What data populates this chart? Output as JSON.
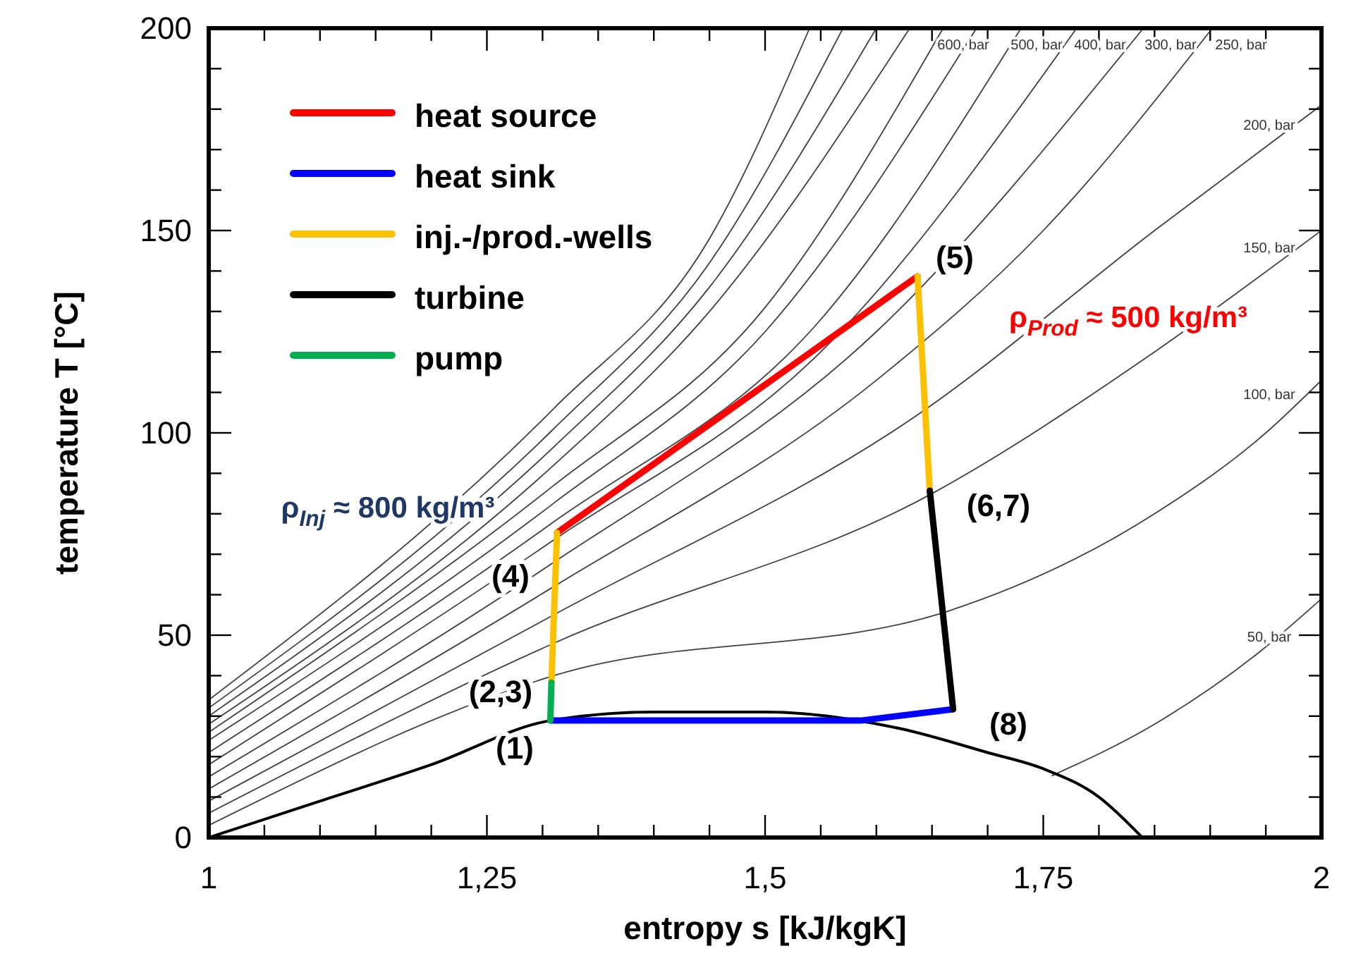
{
  "chart_data": {
    "type": "line",
    "xlabel": "entropy s [kJ/kgK]",
    "ylabel": "temperature T [°C]",
    "xlim": [
      1,
      2
    ],
    "ylim": [
      0,
      200
    ],
    "xticks": [
      1,
      {
        "value": 1.05,
        "label": null
      },
      {
        "value": 1.1,
        "label": null
      },
      {
        "value": 1.15,
        "label": null
      },
      {
        "value": 1.2,
        "label": null
      },
      {
        "value": 1.25,
        "label": "1,25"
      },
      {
        "value": 1.3,
        "label": null
      },
      {
        "value": 1.35,
        "label": null
      },
      {
        "value": 1.4,
        "label": null
      },
      {
        "value": 1.45,
        "label": null
      },
      {
        "value": 1.5,
        "label": "1,5"
      },
      {
        "value": 1.55,
        "label": null
      },
      {
        "value": 1.6,
        "label": null
      },
      {
        "value": 1.65,
        "label": null
      },
      {
        "value": 1.7,
        "label": null
      },
      {
        "value": 1.75,
        "label": "1,75"
      },
      {
        "value": 1.8,
        "label": null
      },
      {
        "value": 1.85,
        "label": null
      },
      {
        "value": 1.9,
        "label": null
      },
      {
        "value": 1.95,
        "label": null
      },
      2
    ],
    "yticks": [
      0,
      {
        "value": 10,
        "label": null
      },
      {
        "value": 20,
        "label": null
      },
      {
        "value": 30,
        "label": null
      },
      {
        "value": 40,
        "label": null
      },
      50,
      {
        "value": 60,
        "label": null
      },
      {
        "value": 70,
        "label": null
      },
      {
        "value": 80,
        "label": null
      },
      {
        "value": 90,
        "label": null
      },
      100,
      {
        "value": 110,
        "label": null
      },
      {
        "value": 120,
        "label": null
      },
      {
        "value": 130,
        "label": null
      },
      {
        "value": 140,
        "label": null
      },
      150,
      {
        "value": 160,
        "label": null
      },
      {
        "value": 170,
        "label": null
      },
      {
        "value": 180,
        "label": null
      },
      {
        "value": 190,
        "label": null
      },
      200
    ],
    "grid": false,
    "legend": "top left",
    "marker": "none",
    "line_style": "solid",
    "series": [
      {
        "color": "#404040",
        "x": [
          1.758,
          1.85,
          1.945,
          2.0
        ],
        "values": [
          15.3,
          28,
          46,
          59
        ]
      },
      {
        "color": "#404040",
        "x": [
          1,
          1.31,
          1.665,
          1.85,
          1.95,
          2.0
        ],
        "values": [
          3,
          40,
          56,
          80,
          100,
          113
        ]
      },
      {
        "color": "#404040",
        "x": [
          1,
          1.31,
          1.65,
          1.85,
          2.0
        ],
        "values": [
          6,
          48,
          85,
          120,
          150
        ]
      },
      {
        "color": "#404040",
        "x": [
          1,
          1.31,
          1.64,
          1.85,
          2.0
        ],
        "values": [
          9,
          55,
          105,
          150,
          181
        ]
      },
      {
        "color": "#404040",
        "x": [
          1,
          1.31,
          1.6,
          1.75,
          1.902
        ],
        "values": [
          12,
          62,
          113,
          150,
          200
        ]
      },
      {
        "color": "#404040",
        "x": [
          1,
          1.31,
          1.6,
          1.84
        ],
        "values": [
          15,
          68,
          125,
          200
        ]
      },
      {
        "color": "#404040",
        "x": [
          1,
          1.31,
          1.55,
          1.78
        ],
        "values": [
          18,
          73.5,
          120,
          200
        ]
      },
      {
        "color": "#404040",
        "x": [
          1,
          1.31,
          1.55,
          1.73
        ],
        "values": [
          21,
          78,
          128,
          200
        ]
      },
      {
        "color": "#404040",
        "x": [
          1,
          1.31,
          1.5,
          1.69
        ],
        "values": [
          24,
          82.6,
          125,
          200
        ]
      },
      {
        "color": "#404040",
        "x": [
          1,
          1.31,
          1.5,
          1.66
        ],
        "values": [
          26,
          87,
          131,
          200
        ]
      },
      {
        "color": "#404040",
        "x": [
          1,
          1.31,
          1.45,
          1.63
        ],
        "values": [
          28,
          92,
          130,
          200
        ]
      },
      {
        "color": "#404040",
        "x": [
          1,
          1.31,
          1.45,
          1.6
        ],
        "values": [
          30,
          96.5,
          136,
          200
        ]
      },
      {
        "color": "#404040",
        "x": [
          1,
          1.31,
          1.45,
          1.57
        ],
        "values": [
          32,
          101,
          142,
          200
        ]
      },
      {
        "color": "#404040",
        "x": [
          1,
          1.31,
          1.45,
          1.54
        ],
        "values": [
          34,
          106,
          148,
          200
        ]
      },
      {
        "color": "#000000",
        "x": [
          1,
          1.1,
          1.2,
          1.307,
          1.4,
          1.5,
          1.62,
          1.7,
          1.75,
          1.8,
          1.839
        ],
        "values": [
          0,
          9,
          18,
          28.9,
          31,
          31,
          27,
          21,
          17,
          10,
          0
        ]
      },
      {
        "name": "heat source",
        "color": "#ff0000",
        "x": [
          1.313,
          1.637
        ],
        "values": [
          75.3,
          138.7
        ]
      },
      {
        "name": "heat sink",
        "color": "#0000ff",
        "x": [
          1.307,
          1.586,
          1.669
        ],
        "values": [
          28.9,
          28.9,
          31.7
        ]
      },
      {
        "name": "inj.-/prod.-wells",
        "color": "#ffc000",
        "x": [
          1.308,
          1.313,
          1.5,
          1.637,
          1.648
        ],
        "values": [
          38.3,
          75.3,
          null,
          138.7,
          85.7
        ]
      },
      {
        "name": "turbine",
        "color": "#000000",
        "x": [
          1.648,
          1.669
        ],
        "values": [
          85.7,
          31.7
        ]
      },
      {
        "name": "pump",
        "color": "#00b050",
        "x": [
          1.307,
          1.308
        ],
        "values": [
          28.9,
          38.3
        ]
      }
    ],
    "annotations": [
      "(1)",
      "(2,3)",
      "(4)",
      "(5)",
      "(6,7)",
      "(8)",
      "ρ$_{Inj}$ ≈ 800 kg/m³",
      "ρ$_{Prod}$ ≈ 500 kg/m³",
      "600, bar",
      "500, bar",
      "400, bar",
      "300, bar",
      "250, bar",
      "200, bar",
      "150, bar",
      "100, bar",
      "50, bar"
    ]
  }
}
